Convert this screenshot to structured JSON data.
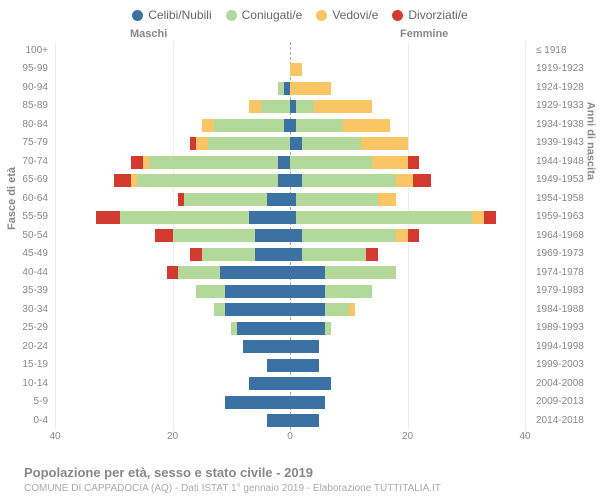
{
  "legend": {
    "items": [
      {
        "label": "Celibi/Nubili",
        "color": "#3b72a3"
      },
      {
        "label": "Coniugati/e",
        "color": "#b2d99a"
      },
      {
        "label": "Vedovi/e",
        "color": "#f9c565"
      },
      {
        "label": "Divorziati/e",
        "color": "#d33a2f"
      }
    ]
  },
  "headers": {
    "male": "Maschi",
    "female": "Femmine"
  },
  "axis_titles": {
    "left": "Fasce di età",
    "right": "Anni di nascita"
  },
  "x_axis": {
    "max": 40,
    "ticks": [
      40,
      20,
      0,
      20,
      40
    ]
  },
  "caption": "Popolazione per età, sesso e stato civile - 2019",
  "subcaption": "COMUNE DI CAPPADOCIA (AQ) - Dati ISTAT 1° gennaio 2019 - Elaborazione TUTTITALIA.IT",
  "colors": {
    "single": "#3b72a3",
    "married": "#b2d99a",
    "widowed": "#f9c565",
    "divorced": "#d33a2f"
  },
  "rows": [
    {
      "age": "100+",
      "birth": "≤ 1918",
      "m": {
        "s": 0,
        "m": 0,
        "w": 0,
        "d": 0
      },
      "f": {
        "s": 0,
        "m": 0,
        "w": 0,
        "d": 0
      }
    },
    {
      "age": "95-99",
      "birth": "1919-1923",
      "m": {
        "s": 0,
        "m": 0,
        "w": 0,
        "d": 0
      },
      "f": {
        "s": 0,
        "m": 0,
        "w": 2,
        "d": 0
      }
    },
    {
      "age": "90-94",
      "birth": "1924-1928",
      "m": {
        "s": 1,
        "m": 1,
        "w": 0,
        "d": 0
      },
      "f": {
        "s": 0,
        "m": 0,
        "w": 7,
        "d": 0
      }
    },
    {
      "age": "85-89",
      "birth": "1929-1933",
      "m": {
        "s": 0,
        "m": 5,
        "w": 2,
        "d": 0
      },
      "f": {
        "s": 1,
        "m": 3,
        "w": 10,
        "d": 0
      }
    },
    {
      "age": "80-84",
      "birth": "1934-1938",
      "m": {
        "s": 1,
        "m": 12,
        "w": 2,
        "d": 0
      },
      "f": {
        "s": 1,
        "m": 8,
        "w": 8,
        "d": 0
      }
    },
    {
      "age": "75-79",
      "birth": "1939-1943",
      "m": {
        "s": 0,
        "m": 14,
        "w": 2,
        "d": 1
      },
      "f": {
        "s": 2,
        "m": 10,
        "w": 8,
        "d": 0
      }
    },
    {
      "age": "70-74",
      "birth": "1944-1948",
      "m": {
        "s": 2,
        "m": 22,
        "w": 1,
        "d": 2
      },
      "f": {
        "s": 0,
        "m": 14,
        "w": 6,
        "d": 2
      }
    },
    {
      "age": "65-69",
      "birth": "1949-1953",
      "m": {
        "s": 2,
        "m": 24,
        "w": 1,
        "d": 3
      },
      "f": {
        "s": 2,
        "m": 16,
        "w": 3,
        "d": 3
      }
    },
    {
      "age": "60-64",
      "birth": "1954-1958",
      "m": {
        "s": 4,
        "m": 14,
        "w": 0,
        "d": 1
      },
      "f": {
        "s": 1,
        "m": 14,
        "w": 3,
        "d": 0
      }
    },
    {
      "age": "55-59",
      "birth": "1959-1963",
      "m": {
        "s": 7,
        "m": 22,
        "w": 0,
        "d": 4
      },
      "f": {
        "s": 1,
        "m": 30,
        "w": 2,
        "d": 2
      }
    },
    {
      "age": "50-54",
      "birth": "1964-1968",
      "m": {
        "s": 6,
        "m": 14,
        "w": 0,
        "d": 3
      },
      "f": {
        "s": 2,
        "m": 16,
        "w": 2,
        "d": 2
      }
    },
    {
      "age": "45-49",
      "birth": "1969-1973",
      "m": {
        "s": 6,
        "m": 9,
        "w": 0,
        "d": 2
      },
      "f": {
        "s": 2,
        "m": 11,
        "w": 0,
        "d": 2
      }
    },
    {
      "age": "40-44",
      "birth": "1974-1978",
      "m": {
        "s": 12,
        "m": 7,
        "w": 0,
        "d": 2
      },
      "f": {
        "s": 6,
        "m": 12,
        "w": 0,
        "d": 0
      }
    },
    {
      "age": "35-39",
      "birth": "1979-1983",
      "m": {
        "s": 11,
        "m": 5,
        "w": 0,
        "d": 0
      },
      "f": {
        "s": 6,
        "m": 8,
        "w": 0,
        "d": 0
      }
    },
    {
      "age": "30-34",
      "birth": "1984-1988",
      "m": {
        "s": 11,
        "m": 2,
        "w": 0,
        "d": 0
      },
      "f": {
        "s": 6,
        "m": 4,
        "w": 1,
        "d": 0
      }
    },
    {
      "age": "25-29",
      "birth": "1989-1993",
      "m": {
        "s": 9,
        "m": 1,
        "w": 0,
        "d": 0
      },
      "f": {
        "s": 6,
        "m": 1,
        "w": 0,
        "d": 0
      }
    },
    {
      "age": "20-24",
      "birth": "1994-1998",
      "m": {
        "s": 8,
        "m": 0,
        "w": 0,
        "d": 0
      },
      "f": {
        "s": 5,
        "m": 0,
        "w": 0,
        "d": 0
      }
    },
    {
      "age": "15-19",
      "birth": "1999-2003",
      "m": {
        "s": 4,
        "m": 0,
        "w": 0,
        "d": 0
      },
      "f": {
        "s": 5,
        "m": 0,
        "w": 0,
        "d": 0
      }
    },
    {
      "age": "10-14",
      "birth": "2004-2008",
      "m": {
        "s": 7,
        "m": 0,
        "w": 0,
        "d": 0
      },
      "f": {
        "s": 7,
        "m": 0,
        "w": 0,
        "d": 0
      }
    },
    {
      "age": "5-9",
      "birth": "2009-2013",
      "m": {
        "s": 11,
        "m": 0,
        "w": 0,
        "d": 0
      },
      "f": {
        "s": 6,
        "m": 0,
        "w": 0,
        "d": 0
      }
    },
    {
      "age": "0-4",
      "birth": "2014-2018",
      "m": {
        "s": 4,
        "m": 0,
        "w": 0,
        "d": 0
      },
      "f": {
        "s": 5,
        "m": 0,
        "w": 0,
        "d": 0
      }
    }
  ]
}
